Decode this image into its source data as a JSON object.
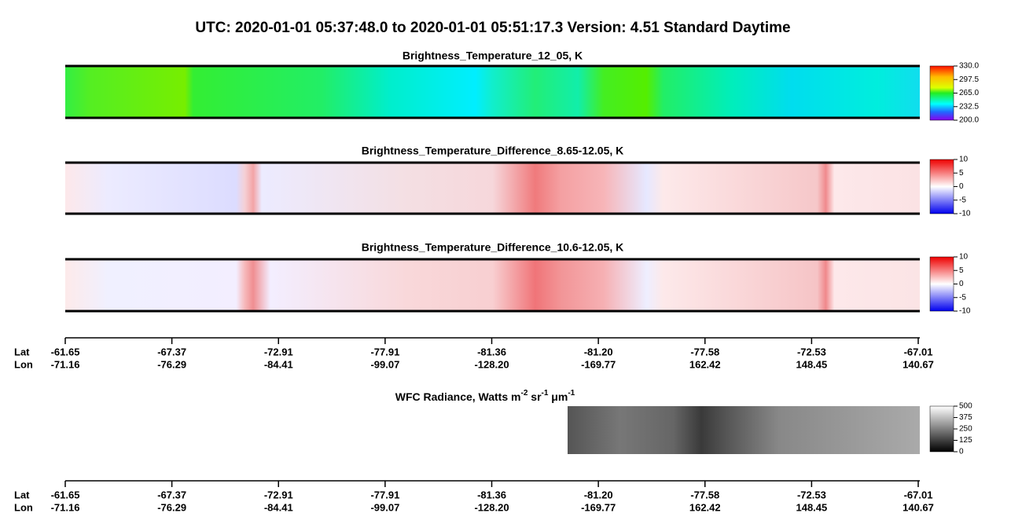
{
  "header": {
    "title": "UTC:  2020-01-01   05:37:48.0  to  2020-01-01   05:51:17.3    Version: 4.51  Standard Daytime"
  },
  "panels": [
    {
      "title": "Brightness_Temperature_12_05, K",
      "colorbar": [
        "330.0",
        "297.5",
        "265.0",
        "232.5",
        "200.0"
      ]
    },
    {
      "title": "Brightness_Temperature_Difference_8.65-12.05, K",
      "colorbar": [
        "10",
        "5",
        "0",
        "-5",
        "-10"
      ]
    },
    {
      "title": "Brightness_Temperature_Difference_10.6-12.05, K",
      "colorbar": [
        "10",
        "5",
        "0",
        "-5",
        "-10"
      ]
    }
  ],
  "axis": {
    "lat_label": "Lat",
    "lon_label": "Lon",
    "lat": [
      "-61.65",
      "-67.37",
      "-72.91",
      "-77.91",
      "-81.36",
      "-81.20",
      "-77.58",
      "-72.53",
      "-67.01"
    ],
    "lon": [
      "-71.16",
      "-76.29",
      "-84.41",
      "-99.07",
      "-128.20",
      "-169.77",
      "162.42",
      "148.45",
      "140.67"
    ]
  },
  "wfc": {
    "title_parts": [
      "WFC Radiance, Watts m",
      "-2",
      " sr",
      "-1",
      " μm",
      "-1"
    ],
    "colorbar": [
      "500",
      "375",
      "250",
      "125",
      "0"
    ]
  },
  "axis2": {
    "lat_label": "Lat",
    "lon_label": "Lon",
    "lat": [
      "-61.65",
      "-67.37",
      "-72.91",
      "-77.91",
      "-81.36",
      "-81.20",
      "-77.58",
      "-72.53",
      "-67.01"
    ],
    "lon": [
      "-71.16",
      "-76.29",
      "-84.41",
      "-99.07",
      "-128.20",
      "-169.77",
      "162.42",
      "148.45",
      "140.67"
    ]
  }
}
